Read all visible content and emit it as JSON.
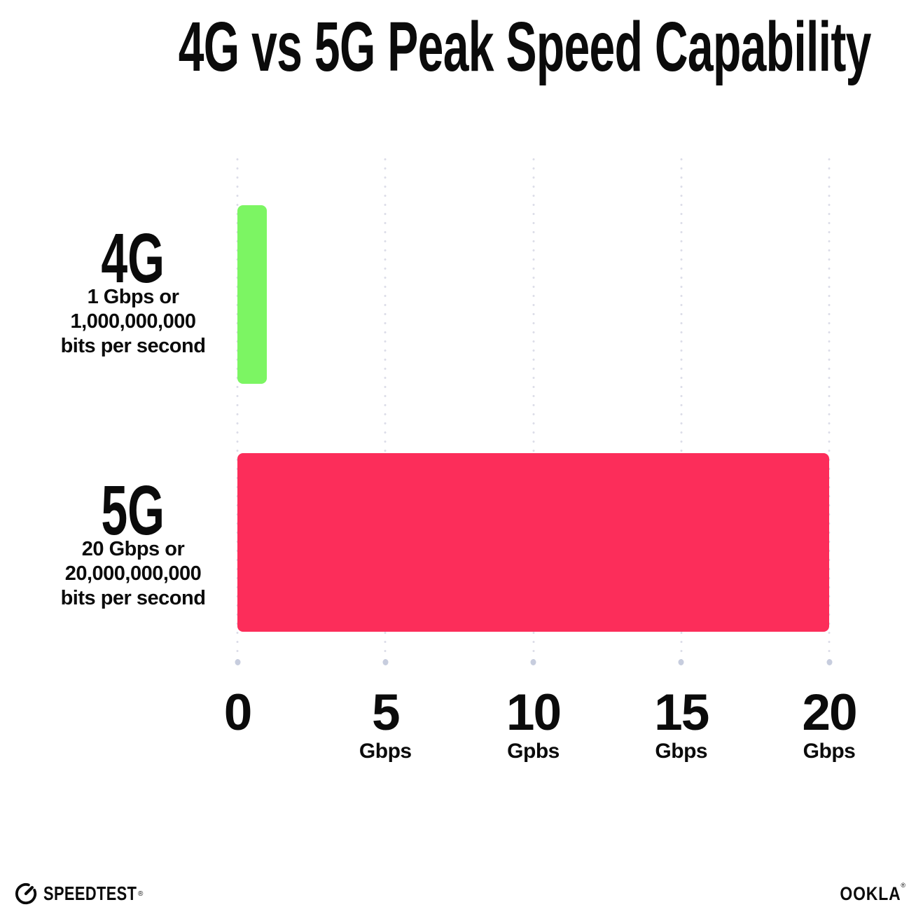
{
  "title": "4G vs 5G Peak Speed Capability",
  "chart_data": {
    "type": "bar",
    "orientation": "horizontal",
    "title": "4G vs 5G Peak Speed Capability",
    "categories": [
      "4G",
      "5G"
    ],
    "values": [
      1,
      20
    ],
    "xlim": [
      0,
      20
    ],
    "grid": "vertical-dotted",
    "legend": "none",
    "bar_colors": [
      "#7cf563",
      "#fc2d5a"
    ],
    "rows": [
      {
        "name": "4G",
        "value_gbps": 1,
        "desc": [
          "1 Gbps or",
          "1,000,000,000",
          "bits per second"
        ]
      },
      {
        "name": "5G",
        "value_gbps": 20,
        "desc": [
          "20 Gbps or",
          "20,000,000,000",
          "bits per second"
        ]
      }
    ],
    "x_ticks": [
      {
        "label": "0",
        "unit": "",
        "value": 0
      },
      {
        "label": "5",
        "unit": "Gbps",
        "value": 5
      },
      {
        "label": "10",
        "unit": "Gpbs",
        "value": 10
      },
      {
        "label": "15",
        "unit": "Gbps",
        "value": 15
      },
      {
        "label": "20",
        "unit": "Gbps",
        "value": 20
      }
    ]
  },
  "footer": {
    "speedtest_label": "SPEEDTEST",
    "speedtest_mark": "®",
    "ookla_label": "OOKLA",
    "ookla_mark": "®"
  }
}
